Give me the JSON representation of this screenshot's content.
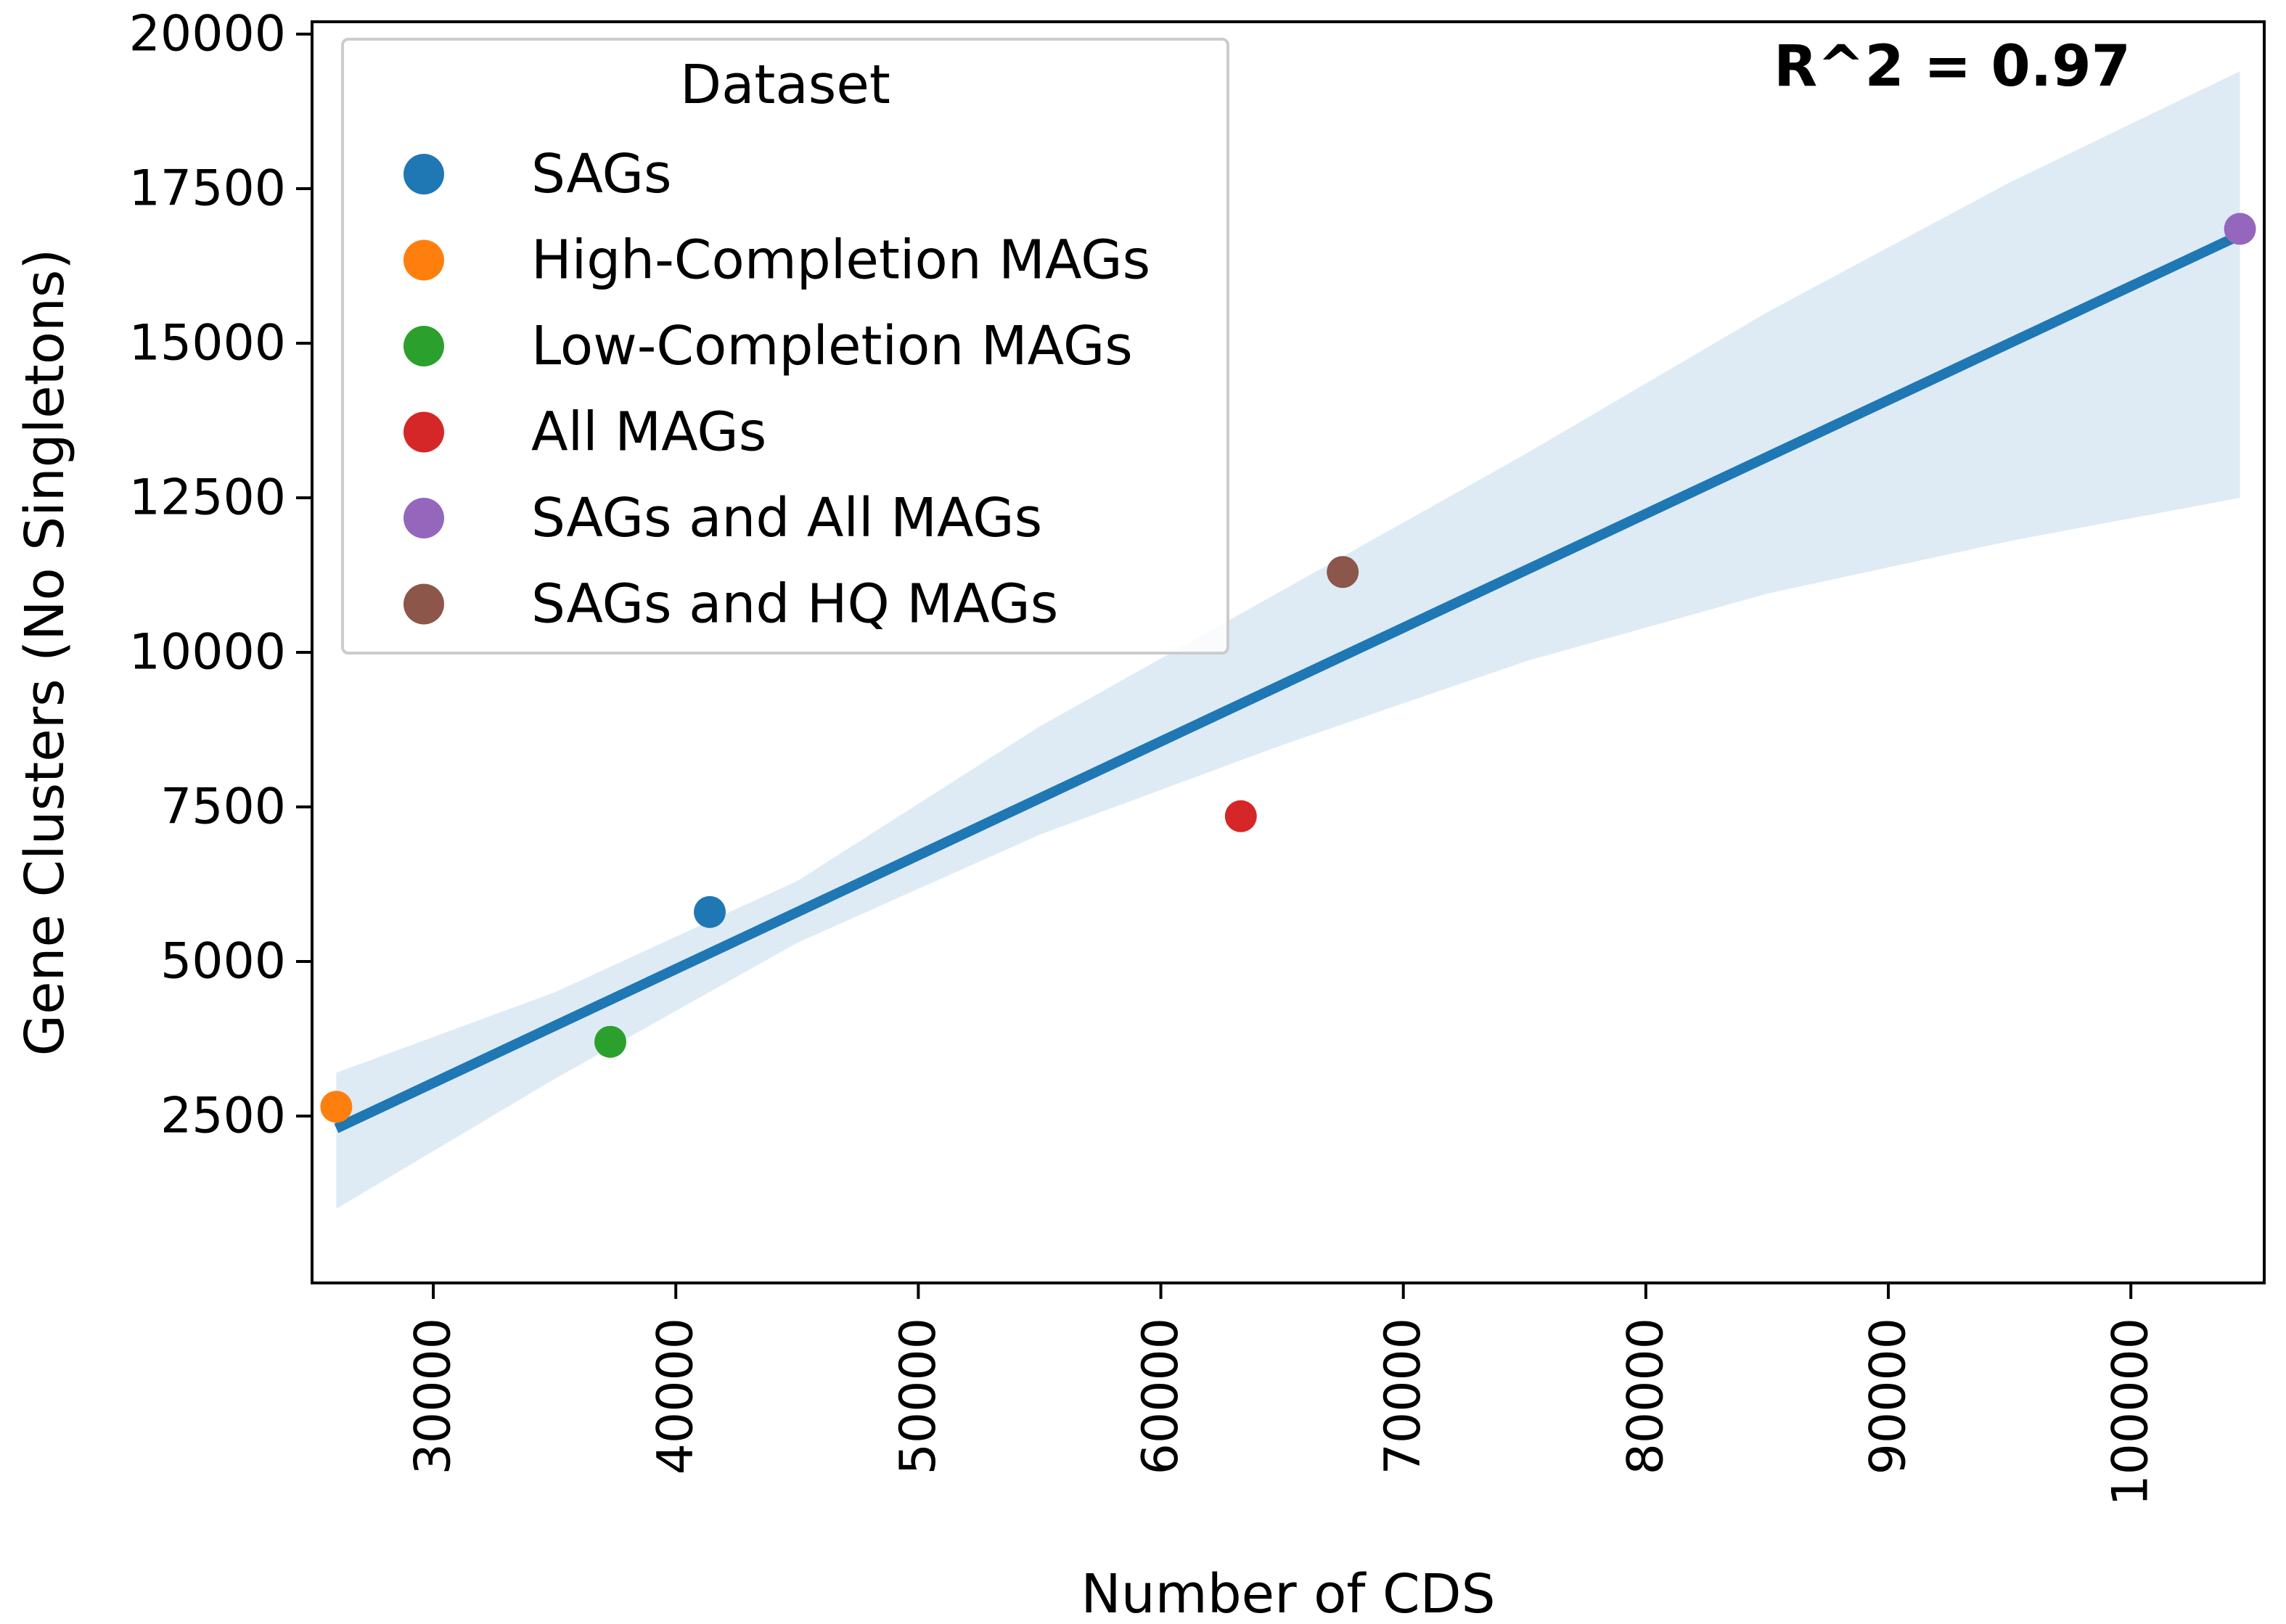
{
  "chart_data": {
    "type": "scatter",
    "title": "",
    "xlabel": "Number of CDS",
    "ylabel": "Gene Clusters (No Singletons)",
    "xlim": [
      25000,
      105500
    ],
    "ylim": [
      -200,
      20200
    ],
    "xticks": [
      30000,
      40000,
      50000,
      60000,
      70000,
      80000,
      90000,
      100000
    ],
    "yticks": [
      2500,
      5000,
      7500,
      10000,
      12500,
      15000,
      17500,
      20000
    ],
    "grid": false,
    "legend": {
      "title": "Dataset",
      "position": "top-left"
    },
    "series": [
      {
        "name": "SAGs",
        "color": "#1f77b4",
        "x": 41400,
        "y": 5800
      },
      {
        "name": "High-Completion MAGs",
        "color": "#ff7f0e",
        "x": 26000,
        "y": 2650
      },
      {
        "name": "Low-Completion MAGs",
        "color": "#2ca02c",
        "x": 37300,
        "y": 3700
      },
      {
        "name": "All MAGs",
        "color": "#d62728",
        "x": 63300,
        "y": 7350
      },
      {
        "name": "SAGs and All MAGs",
        "color": "#9467bd",
        "x": 104500,
        "y": 16850
      },
      {
        "name": "SAGs and HQ MAGs",
        "color": "#8c564b",
        "x": 67500,
        "y": 11300
      }
    ],
    "regression": {
      "color": "#1f77b4",
      "x": [
        26000,
        104500
      ],
      "y": [
        2300,
        16750
      ],
      "ci_color": "#1f77b4",
      "ci_lower": [
        [
          26000,
          1000
        ],
        [
          35000,
          3100
        ],
        [
          45000,
          5300
        ],
        [
          55000,
          7050
        ],
        [
          65000,
          8500
        ],
        [
          75000,
          9850
        ],
        [
          85000,
          10950
        ],
        [
          95000,
          11800
        ],
        [
          104500,
          12500
        ]
      ],
      "ci_upper": [
        [
          26000,
          3200
        ],
        [
          35000,
          4500
        ],
        [
          45000,
          6300
        ],
        [
          55000,
          8800
        ],
        [
          65000,
          11000
        ],
        [
          75000,
          13200
        ],
        [
          85000,
          15500
        ],
        [
          95000,
          17600
        ],
        [
          104500,
          19400
        ]
      ]
    },
    "annotations": [
      {
        "text": "R^2 = 0.97"
      }
    ]
  }
}
